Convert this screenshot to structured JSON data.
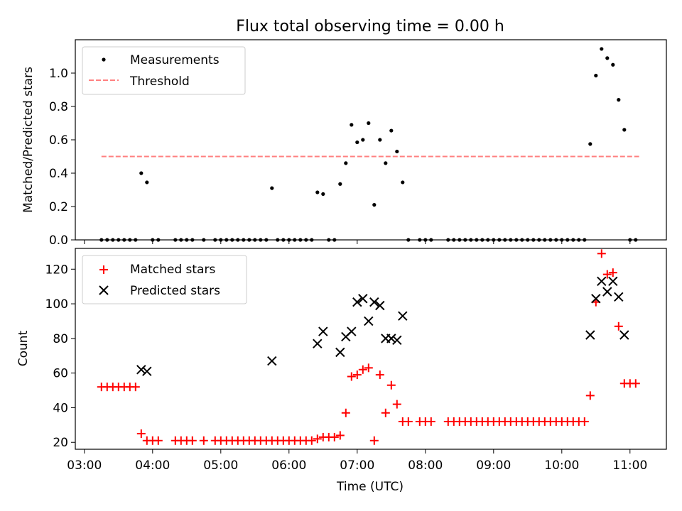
{
  "title": "Flux total observing time = 0.00 h",
  "xlabel": "Time (UTC)",
  "xtick_labels": [
    "03:00",
    "04:00",
    "05:00",
    "06:00",
    "07:00",
    "08:00",
    "09:00",
    "10:00",
    "11:00"
  ],
  "chart_data": [
    {
      "type": "scatter",
      "ylabel": "Matched/Predicted stars",
      "xlim": [
        "02:52",
        "11:32"
      ],
      "ylim": [
        0,
        1.2
      ],
      "yticks": [
        "0.0",
        "0.2",
        "0.4",
        "0.6",
        "0.8",
        "1.0"
      ],
      "legend": {
        "position": "top-left",
        "entries": [
          "Measurements",
          "Threshold"
        ]
      },
      "threshold": {
        "name": "Threshold",
        "y": 0.5,
        "x_range": [
          "03:15",
          "11:08"
        ],
        "color": "#ff8080"
      },
      "series": [
        {
          "name": "Measurements",
          "marker": "dot",
          "color": "#000000",
          "points": [
            [
              "03:15",
              0
            ],
            [
              "03:20",
              0
            ],
            [
              "03:25",
              0
            ],
            [
              "03:30",
              0
            ],
            [
              "03:35",
              0
            ],
            [
              "03:40",
              0
            ],
            [
              "03:45",
              0
            ],
            [
              "03:50",
              0.4
            ],
            [
              "03:55",
              0.345
            ],
            [
              "04:00",
              0
            ],
            [
              "04:05",
              0
            ],
            [
              "04:20",
              0
            ],
            [
              "04:25",
              0
            ],
            [
              "04:30",
              0
            ],
            [
              "04:35",
              0
            ],
            [
              "04:45",
              0
            ],
            [
              "04:55",
              0
            ],
            [
              "05:00",
              0
            ],
            [
              "05:05",
              0
            ],
            [
              "05:10",
              0
            ],
            [
              "05:15",
              0
            ],
            [
              "05:20",
              0
            ],
            [
              "05:25",
              0
            ],
            [
              "05:30",
              0
            ],
            [
              "05:35",
              0
            ],
            [
              "05:40",
              0
            ],
            [
              "05:45",
              0.31
            ],
            [
              "05:50",
              0
            ],
            [
              "05:55",
              0
            ],
            [
              "06:00",
              0
            ],
            [
              "06:05",
              0
            ],
            [
              "06:10",
              0
            ],
            [
              "06:15",
              0
            ],
            [
              "06:20",
              0
            ],
            [
              "06:25",
              0.285
            ],
            [
              "06:30",
              0.275
            ],
            [
              "06:35",
              0
            ],
            [
              "06:40",
              0
            ],
            [
              "06:45",
              0.335
            ],
            [
              "06:50",
              0.46
            ],
            [
              "06:55",
              0.69
            ],
            [
              "07:00",
              0.585
            ],
            [
              "07:05",
              0.6
            ],
            [
              "07:10",
              0.7
            ],
            [
              "07:15",
              0.21
            ],
            [
              "07:20",
              0.6
            ],
            [
              "07:25",
              0.46
            ],
            [
              "07:30",
              0.655
            ],
            [
              "07:35",
              0.53
            ],
            [
              "07:40",
              0.345
            ],
            [
              "07:45",
              0
            ],
            [
              "07:55",
              0
            ],
            [
              "08:00",
              0
            ],
            [
              "08:05",
              0
            ],
            [
              "08:20",
              0
            ],
            [
              "08:25",
              0
            ],
            [
              "08:30",
              0
            ],
            [
              "08:35",
              0
            ],
            [
              "08:40",
              0
            ],
            [
              "08:45",
              0
            ],
            [
              "08:50",
              0
            ],
            [
              "08:55",
              0
            ],
            [
              "09:00",
              0
            ],
            [
              "09:05",
              0
            ],
            [
              "09:10",
              0
            ],
            [
              "09:15",
              0
            ],
            [
              "09:20",
              0
            ],
            [
              "09:25",
              0
            ],
            [
              "09:30",
              0
            ],
            [
              "09:35",
              0
            ],
            [
              "09:40",
              0
            ],
            [
              "09:45",
              0
            ],
            [
              "09:50",
              0
            ],
            [
              "09:55",
              0
            ],
            [
              "10:00",
              0
            ],
            [
              "10:05",
              0
            ],
            [
              "10:10",
              0
            ],
            [
              "10:15",
              0
            ],
            [
              "10:20",
              0
            ],
            [
              "10:25",
              0.575
            ],
            [
              "10:30",
              0.985
            ],
            [
              "10:35",
              1.145
            ],
            [
              "10:40",
              1.09
            ],
            [
              "10:45",
              1.05
            ],
            [
              "10:50",
              0.84
            ],
            [
              "10:55",
              0.66
            ],
            [
              "11:00",
              0
            ],
            [
              "11:05",
              0
            ]
          ]
        }
      ]
    },
    {
      "type": "scatter",
      "ylabel": "Count",
      "xlim": [
        "02:52",
        "11:32"
      ],
      "ylim": [
        16,
        132
      ],
      "yticks": [
        "20",
        "40",
        "60",
        "80",
        "100",
        "120"
      ],
      "legend": {
        "position": "top-left",
        "entries": [
          "Matched stars",
          "Predicted stars"
        ]
      },
      "series": [
        {
          "name": "Matched stars",
          "marker": "plus",
          "color": "#ff0000",
          "points": [
            [
              "03:15",
              52
            ],
            [
              "03:20",
              52
            ],
            [
              "03:25",
              52
            ],
            [
              "03:30",
              52
            ],
            [
              "03:35",
              52
            ],
            [
              "03:40",
              52
            ],
            [
              "03:45",
              52
            ],
            [
              "03:50",
              25
            ],
            [
              "03:55",
              21
            ],
            [
              "04:00",
              21
            ],
            [
              "04:05",
              21
            ],
            [
              "04:20",
              21
            ],
            [
              "04:25",
              21
            ],
            [
              "04:30",
              21
            ],
            [
              "04:35",
              21
            ],
            [
              "04:45",
              21
            ],
            [
              "04:55",
              21
            ],
            [
              "05:00",
              21
            ],
            [
              "05:05",
              21
            ],
            [
              "05:10",
              21
            ],
            [
              "05:15",
              21
            ],
            [
              "05:20",
              21
            ],
            [
              "05:25",
              21
            ],
            [
              "05:30",
              21
            ],
            [
              "05:35",
              21
            ],
            [
              "05:40",
              21
            ],
            [
              "05:45",
              21
            ],
            [
              "05:50",
              21
            ],
            [
              "05:55",
              21
            ],
            [
              "06:00",
              21
            ],
            [
              "06:05",
              21
            ],
            [
              "06:10",
              21
            ],
            [
              "06:15",
              21
            ],
            [
              "06:20",
              21
            ],
            [
              "06:25",
              22
            ],
            [
              "06:30",
              23
            ],
            [
              "06:35",
              23
            ],
            [
              "06:40",
              23
            ],
            [
              "06:45",
              24
            ],
            [
              "06:50",
              37
            ],
            [
              "06:55",
              58
            ],
            [
              "07:00",
              59
            ],
            [
              "07:05",
              62
            ],
            [
              "07:10",
              63
            ],
            [
              "07:15",
              21
            ],
            [
              "07:20",
              59
            ],
            [
              "07:25",
              37
            ],
            [
              "07:30",
              53
            ],
            [
              "07:35",
              42
            ],
            [
              "07:40",
              32
            ],
            [
              "07:45",
              32
            ],
            [
              "07:55",
              32
            ],
            [
              "08:00",
              32
            ],
            [
              "08:05",
              32
            ],
            [
              "08:20",
              32
            ],
            [
              "08:25",
              32
            ],
            [
              "08:30",
              32
            ],
            [
              "08:35",
              32
            ],
            [
              "08:40",
              32
            ],
            [
              "08:45",
              32
            ],
            [
              "08:50",
              32
            ],
            [
              "08:55",
              32
            ],
            [
              "09:00",
              32
            ],
            [
              "09:05",
              32
            ],
            [
              "09:10",
              32
            ],
            [
              "09:15",
              32
            ],
            [
              "09:20",
              32
            ],
            [
              "09:25",
              32
            ],
            [
              "09:30",
              32
            ],
            [
              "09:35",
              32
            ],
            [
              "09:40",
              32
            ],
            [
              "09:45",
              32
            ],
            [
              "09:50",
              32
            ],
            [
              "09:55",
              32
            ],
            [
              "10:00",
              32
            ],
            [
              "10:05",
              32
            ],
            [
              "10:10",
              32
            ],
            [
              "10:15",
              32
            ],
            [
              "10:20",
              32
            ],
            [
              "10:25",
              47
            ],
            [
              "10:30",
              101
            ],
            [
              "10:35",
              129
            ],
            [
              "10:40",
              117
            ],
            [
              "10:45",
              118
            ],
            [
              "10:50",
              87
            ],
            [
              "10:55",
              54
            ],
            [
              "11:00",
              54
            ],
            [
              "11:05",
              54
            ]
          ]
        },
        {
          "name": "Predicted stars",
          "marker": "x",
          "color": "#000000",
          "points": [
            [
              "03:50",
              62
            ],
            [
              "03:55",
              61
            ],
            [
              "05:45",
              67
            ],
            [
              "06:25",
              77
            ],
            [
              "06:30",
              84
            ],
            [
              "06:45",
              72
            ],
            [
              "06:50",
              81
            ],
            [
              "06:55",
              84
            ],
            [
              "07:00",
              101
            ],
            [
              "07:05",
              103
            ],
            [
              "07:10",
              90
            ],
            [
              "07:15",
              101
            ],
            [
              "07:20",
              99
            ],
            [
              "07:25",
              80
            ],
            [
              "07:30",
              80
            ],
            [
              "07:35",
              79
            ],
            [
              "07:40",
              93
            ],
            [
              "10:25",
              82
            ],
            [
              "10:30",
              103
            ],
            [
              "10:35",
              113
            ],
            [
              "10:40",
              107
            ],
            [
              "10:45",
              113
            ],
            [
              "10:50",
              104
            ],
            [
              "10:55",
              82
            ]
          ]
        }
      ]
    }
  ]
}
